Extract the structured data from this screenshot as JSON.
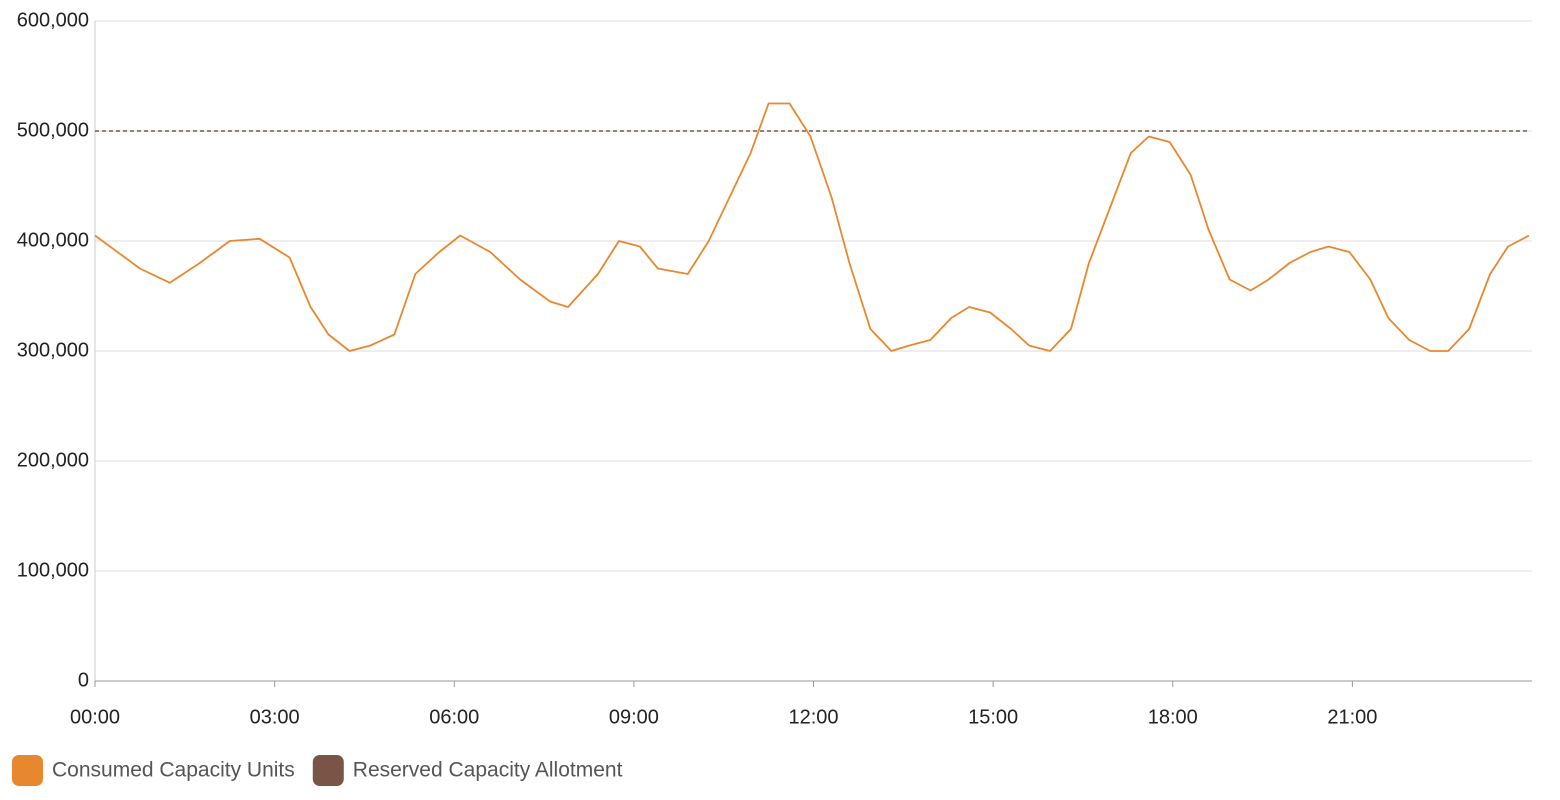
{
  "chart_data": {
    "type": "line",
    "x": [
      0,
      0.75,
      1.25,
      1.75,
      2.25,
      2.75,
      3.25,
      3.6,
      3.9,
      4.25,
      4.6,
      5.0,
      5.35,
      5.75,
      6.1,
      6.6,
      7.1,
      7.6,
      7.9,
      8.4,
      8.75,
      9.1,
      9.4,
      9.9,
      10.25,
      10.6,
      10.95,
      11.25,
      11.6,
      11.95,
      12.3,
      12.6,
      12.95,
      13.3,
      13.6,
      13.95,
      14.3,
      14.6,
      14.95,
      15.3,
      15.6,
      15.95,
      16.3,
      16.6,
      16.95,
      17.3,
      17.6,
      17.95,
      18.3,
      18.6,
      18.95,
      19.3,
      19.6,
      19.95,
      20.3,
      20.6,
      20.95,
      21.3,
      21.6,
      21.95,
      22.3,
      22.6,
      22.95,
      23.3,
      23.6,
      23.95
    ],
    "series": [
      {
        "name": "Consumed Capacity Units",
        "color": "#e8882e",
        "values": [
          405000,
          375000,
          362000,
          380000,
          400000,
          402000,
          385000,
          340000,
          315000,
          300000,
          305000,
          315000,
          370000,
          390000,
          405000,
          390000,
          365000,
          345000,
          340000,
          370000,
          400000,
          395000,
          375000,
          370000,
          400000,
          440000,
          480000,
          525000,
          525000,
          495000,
          440000,
          380000,
          320000,
          300000,
          305000,
          310000,
          330000,
          340000,
          335000,
          320000,
          305000,
          300000,
          320000,
          380000,
          430000,
          480000,
          495000,
          490000,
          460000,
          410000,
          365000,
          355000,
          365000,
          380000,
          390000,
          395000,
          390000,
          365000,
          330000,
          310000,
          300000,
          300000,
          320000,
          370000,
          395000,
          405000
        ]
      },
      {
        "name": "Reserved Capacity Allotment",
        "color": "#7a5547",
        "dashed": true,
        "values": [
          500000,
          500000,
          500000,
          500000,
          500000,
          500000,
          500000,
          500000,
          500000,
          500000,
          500000,
          500000,
          500000,
          500000,
          500000,
          500000,
          500000,
          500000,
          500000,
          500000,
          500000,
          500000,
          500000,
          500000,
          500000,
          500000,
          500000,
          500000,
          500000,
          500000,
          500000,
          500000,
          500000,
          500000,
          500000,
          500000,
          500000,
          500000,
          500000,
          500000,
          500000,
          500000,
          500000,
          500000,
          500000,
          500000,
          500000,
          500000,
          500000,
          500000,
          500000,
          500000,
          500000,
          500000,
          500000,
          500000,
          500000,
          500000,
          500000,
          500000,
          500000,
          500000,
          500000,
          500000,
          500000,
          500000
        ]
      }
    ],
    "xlim": [
      0,
      24
    ],
    "xticks": [
      {
        "value": 0,
        "label": "00:00"
      },
      {
        "value": 3,
        "label": "03:00"
      },
      {
        "value": 6,
        "label": "06:00"
      },
      {
        "value": 9,
        "label": "09:00"
      },
      {
        "value": 12,
        "label": "12:00"
      },
      {
        "value": 15,
        "label": "15:00"
      },
      {
        "value": 18,
        "label": "18:00"
      },
      {
        "value": 21,
        "label": "21:00"
      }
    ],
    "ylim": [
      0,
      600000
    ],
    "yticks": [
      0,
      {
        "value": 100000,
        "label": "100,000"
      },
      {
        "value": 200000,
        "label": "200,000"
      },
      {
        "value": 300000,
        "label": "300,000"
      },
      {
        "value": 400000,
        "label": "400,000"
      },
      {
        "value": 500000,
        "label": "500,000"
      },
      {
        "value": 600000,
        "label": "600,000"
      }
    ],
    "grid": true,
    "legend": "bottom-left"
  }
}
